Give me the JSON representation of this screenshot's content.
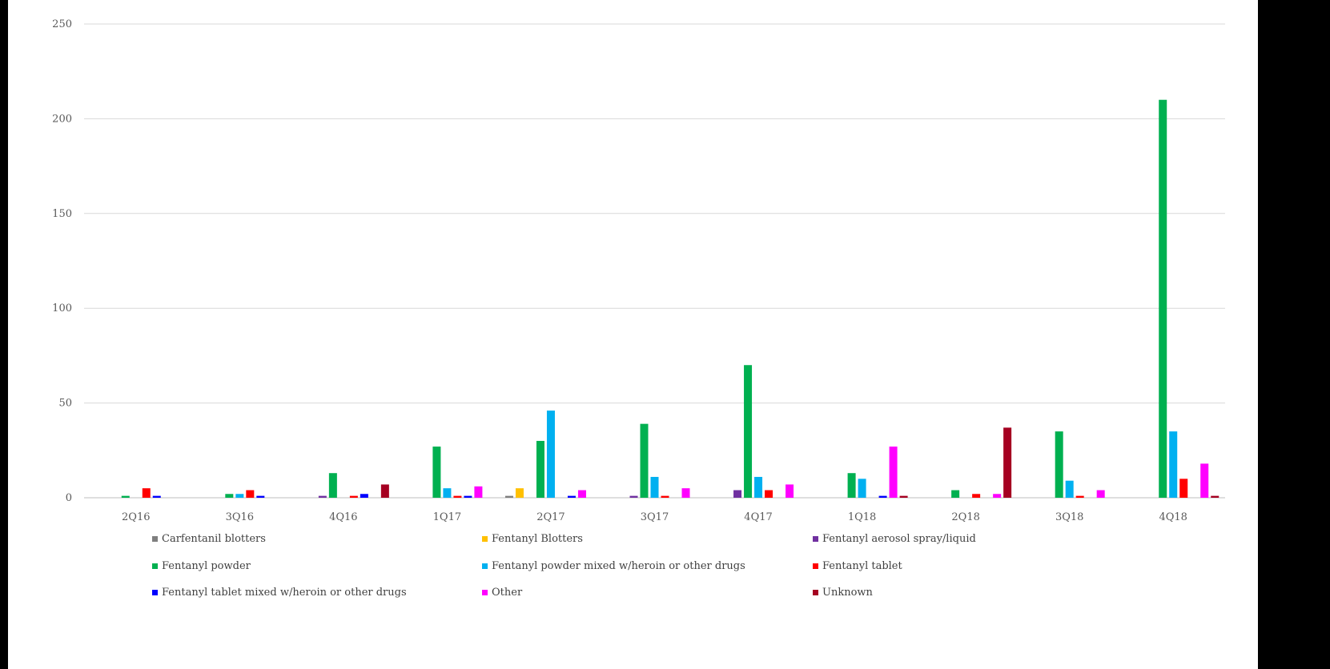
{
  "chart_data": {
    "type": "bar",
    "title": "",
    "xlabel": "",
    "ylabel": "",
    "ylim": [
      0,
      250
    ],
    "yticks": [
      0,
      50,
      100,
      150,
      200,
      250
    ],
    "grid": true,
    "legend_position": "bottom",
    "categories": [
      "2Q16",
      "3Q16",
      "4Q16",
      "1Q17",
      "2Q17",
      "3Q17",
      "4Q17",
      "1Q18",
      "2Q18",
      "3Q18",
      "4Q18"
    ],
    "series": [
      {
        "name": "Carfentanil blotters",
        "color": "#7f7f7f",
        "values": [
          0,
          0,
          0,
          0,
          1,
          0,
          0,
          0,
          0,
          0,
          0
        ]
      },
      {
        "name": "Fentanyl Blotters",
        "color": "#ffc000",
        "values": [
          0,
          0,
          0,
          0,
          5,
          0,
          0,
          0,
          0,
          0,
          0
        ]
      },
      {
        "name": "Fentanyl aerosol spray/liquid",
        "color": "#7030a0",
        "values": [
          0,
          0,
          1,
          0,
          0,
          1,
          4,
          0,
          0,
          0,
          0
        ]
      },
      {
        "name": "Fentanyl powder",
        "color": "#00b050",
        "values": [
          1,
          2,
          13,
          27,
          30,
          39,
          70,
          13,
          4,
          35,
          210
        ]
      },
      {
        "name": "Fentanyl powder mixed w/heroin or other drugs",
        "color": "#00b0f0",
        "values": [
          0,
          2,
          0,
          5,
          46,
          11,
          11,
          10,
          0,
          9,
          35
        ]
      },
      {
        "name": "Fentanyl tablet",
        "color": "#ff0000",
        "values": [
          5,
          4,
          1,
          1,
          0,
          1,
          4,
          0,
          2,
          1,
          10
        ]
      },
      {
        "name": "Fentanyl tablet mixed w/heroin or other drugs",
        "color": "#0000ff",
        "values": [
          1,
          1,
          2,
          1,
          1,
          0,
          0,
          1,
          0,
          0,
          0
        ]
      },
      {
        "name": "Other",
        "color": "#ff00ff",
        "values": [
          0,
          0,
          0,
          6,
          4,
          5,
          7,
          27,
          2,
          4,
          18
        ]
      },
      {
        "name": "Unknown",
        "color": "#a50021",
        "values": [
          0,
          0,
          7,
          0,
          0,
          0,
          0,
          1,
          37,
          0,
          1
        ]
      }
    ]
  }
}
